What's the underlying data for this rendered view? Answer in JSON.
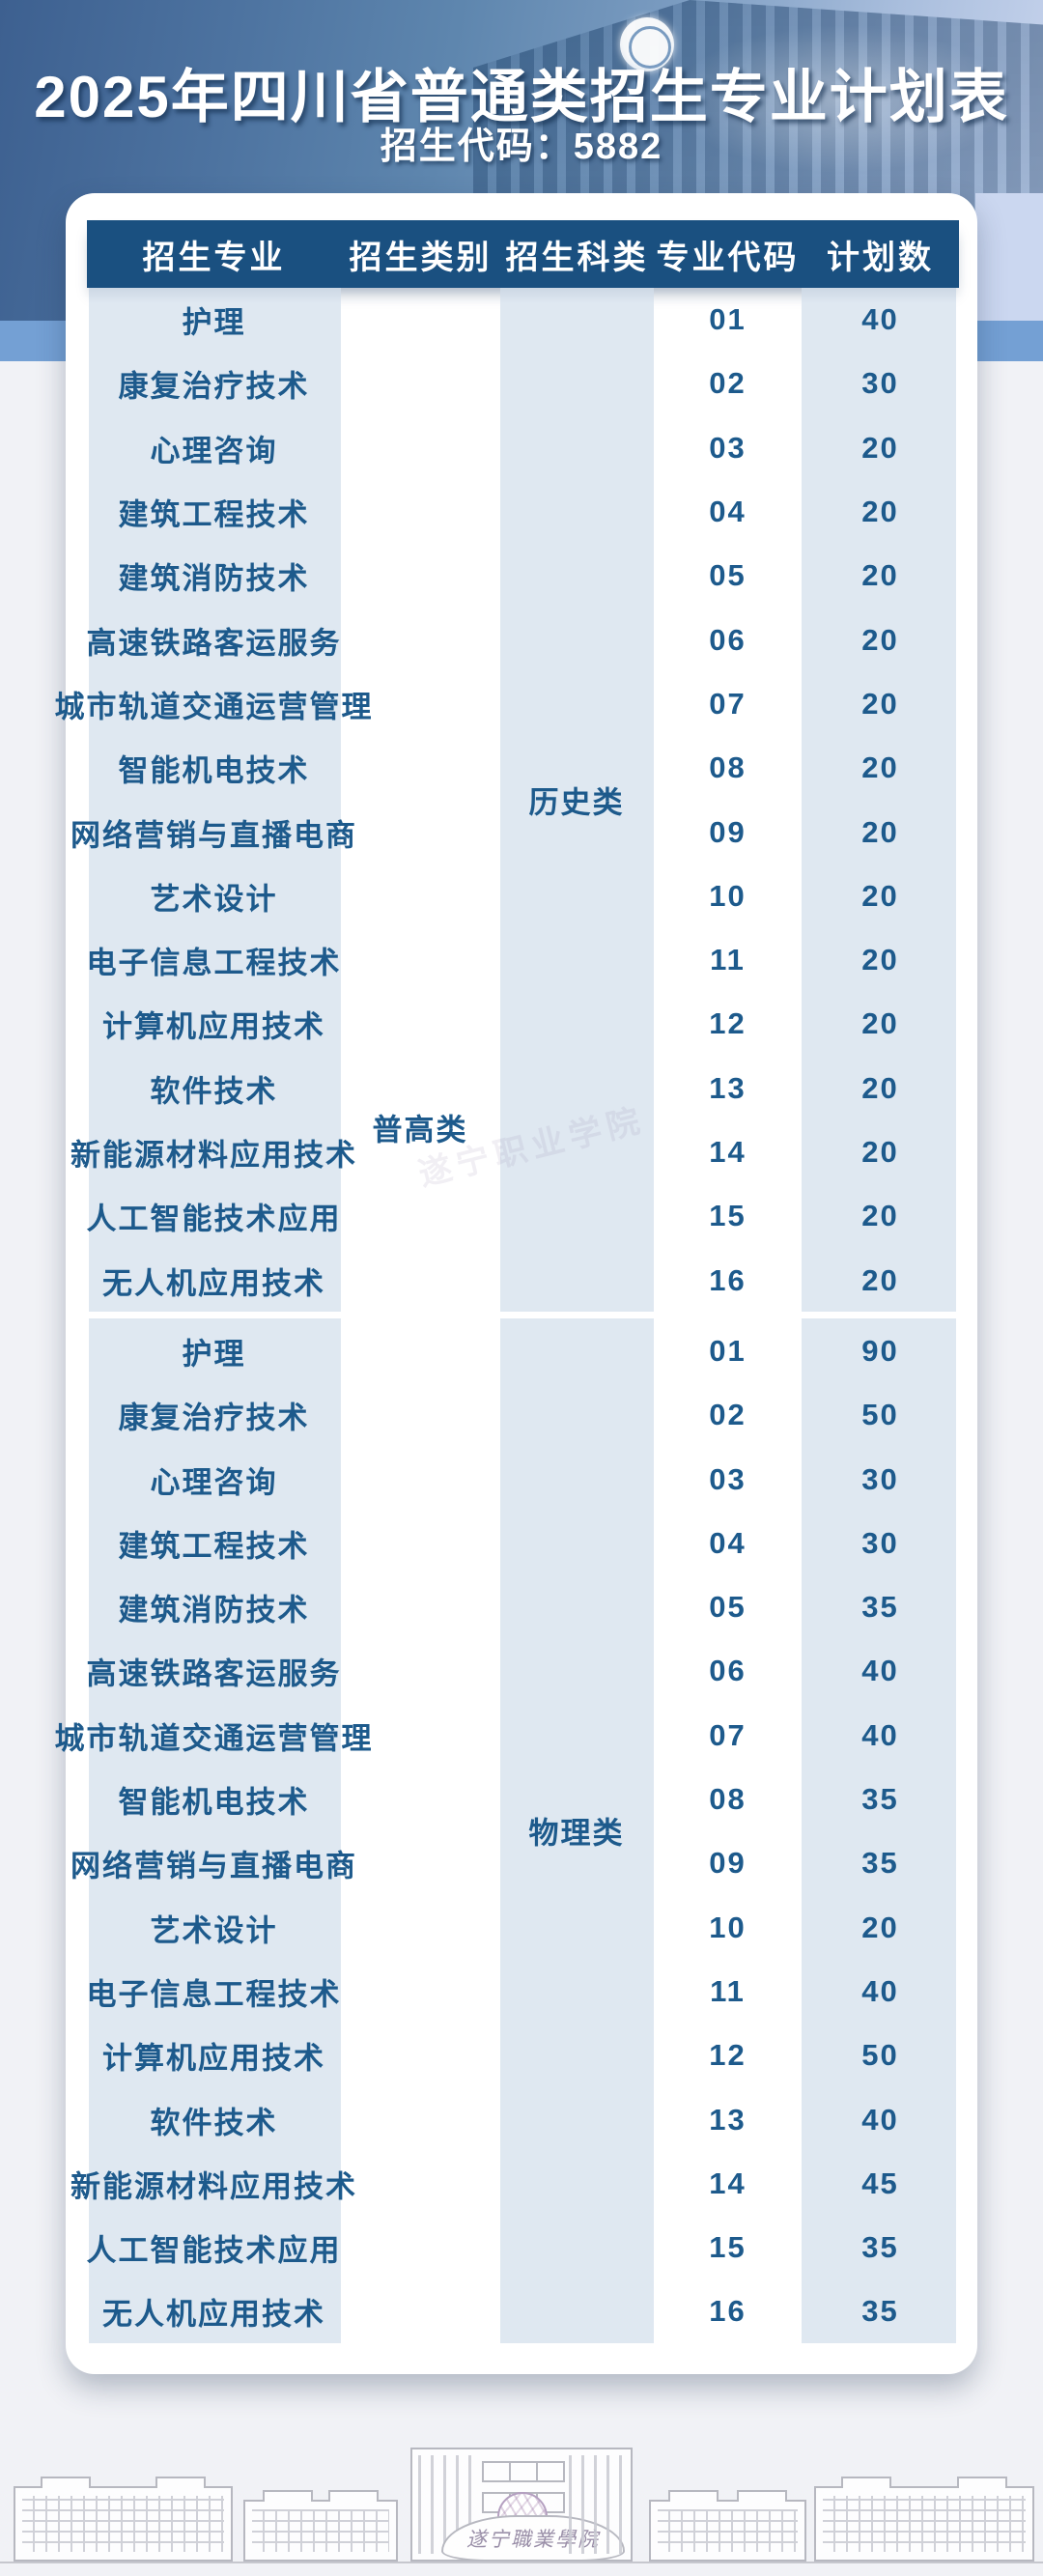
{
  "header": {
    "title": "2025年四川省普通类招生专业计划表",
    "subtitle": "招生代码：5882"
  },
  "table": {
    "columns": [
      "招生专业",
      "招生类别",
      "招生科类",
      "专业代码",
      "计划数"
    ],
    "category_label": "普高类",
    "sections": [
      {
        "subject_label": "历史类",
        "rows": [
          {
            "major": "护理",
            "code": "01",
            "plan": "40"
          },
          {
            "major": "康复治疗技术",
            "code": "02",
            "plan": "30"
          },
          {
            "major": "心理咨询",
            "code": "03",
            "plan": "20"
          },
          {
            "major": "建筑工程技术",
            "code": "04",
            "plan": "20"
          },
          {
            "major": "建筑消防技术",
            "code": "05",
            "plan": "20"
          },
          {
            "major": "高速铁路客运服务",
            "code": "06",
            "plan": "20"
          },
          {
            "major": "城市轨道交通运营管理",
            "code": "07",
            "plan": "20"
          },
          {
            "major": "智能机电技术",
            "code": "08",
            "plan": "20"
          },
          {
            "major": "网络营销与直播电商",
            "code": "09",
            "plan": "20"
          },
          {
            "major": "艺术设计",
            "code": "10",
            "plan": "20"
          },
          {
            "major": "电子信息工程技术",
            "code": "11",
            "plan": "20"
          },
          {
            "major": "计算机应用技术",
            "code": "12",
            "plan": "20"
          },
          {
            "major": "软件技术",
            "code": "13",
            "plan": "20"
          },
          {
            "major": "新能源材料应用技术",
            "code": "14",
            "plan": "20"
          },
          {
            "major": "人工智能技术应用",
            "code": "15",
            "plan": "20"
          },
          {
            "major": "无人机应用技术",
            "code": "16",
            "plan": "20"
          }
        ]
      },
      {
        "subject_label": "物理类",
        "rows": [
          {
            "major": "护理",
            "code": "01",
            "plan": "90"
          },
          {
            "major": "康复治疗技术",
            "code": "02",
            "plan": "50"
          },
          {
            "major": "心理咨询",
            "code": "03",
            "plan": "30"
          },
          {
            "major": "建筑工程技术",
            "code": "04",
            "plan": "30"
          },
          {
            "major": "建筑消防技术",
            "code": "05",
            "plan": "35"
          },
          {
            "major": "高速铁路客运服务",
            "code": "06",
            "plan": "40"
          },
          {
            "major": "城市轨道交通运营管理",
            "code": "07",
            "plan": "40"
          },
          {
            "major": "智能机电技术",
            "code": "08",
            "plan": "35"
          },
          {
            "major": "网络营销与直播电商",
            "code": "09",
            "plan": "35"
          },
          {
            "major": "艺术设计",
            "code": "10",
            "plan": "20"
          },
          {
            "major": "电子信息工程技术",
            "code": "11",
            "plan": "40"
          },
          {
            "major": "计算机应用技术",
            "code": "12",
            "plan": "50"
          },
          {
            "major": "软件技术",
            "code": "13",
            "plan": "40"
          },
          {
            "major": "新能源材料应用技术",
            "code": "14",
            "plan": "45"
          },
          {
            "major": "人工智能技术应用",
            "code": "15",
            "plan": "35"
          },
          {
            "major": "无人机应用技术",
            "code": "16",
            "plan": "35"
          }
        ]
      }
    ]
  },
  "watermark": {
    "text": "遂宁职业学院"
  },
  "footer": {
    "stone_text": "遂宁職業學院"
  },
  "colors": {
    "header_band": "#1a5080",
    "cell_text": "#1d5a8c",
    "tint_column": "#dfe8f1",
    "stripe": "#74a0d4",
    "periwinkle": "#cbd7f0",
    "page_background": "#f1f2f6"
  }
}
